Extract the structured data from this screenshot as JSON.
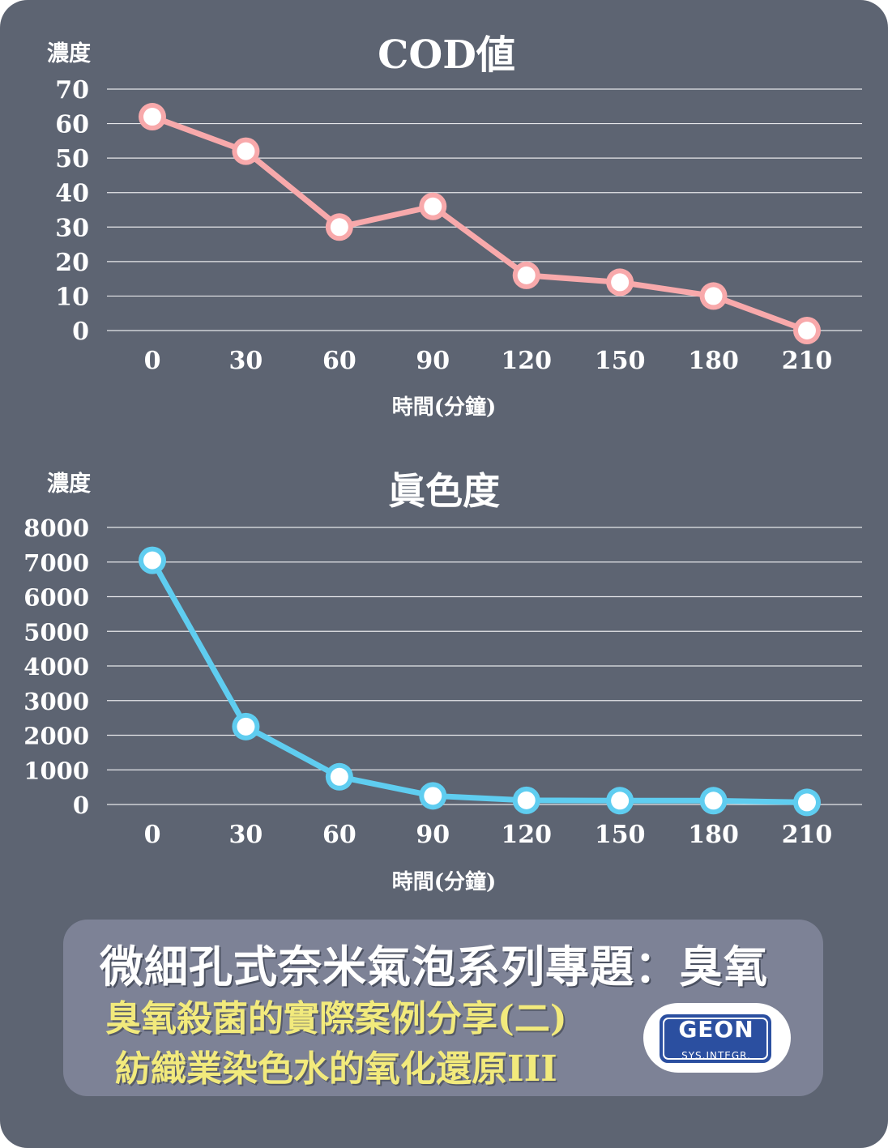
{
  "chart_data": [
    {
      "type": "line",
      "title": "COD値",
      "ylabel": "濃度",
      "xlabel": "時間(分鐘)",
      "categories": [
        "0",
        "30",
        "60",
        "90",
        "120",
        "150",
        "180",
        "210"
      ],
      "series": [
        {
          "values": [
            62,
            52,
            30,
            36,
            16,
            14,
            10,
            0
          ]
        }
      ],
      "y_ticks": [
        "70",
        "60",
        "50",
        "40",
        "30",
        "20",
        "10",
        "0"
      ],
      "ylim": [
        0,
        70
      ],
      "grid": true,
      "line_color": "#f8a9ab"
    },
    {
      "type": "line",
      "title": "眞色度",
      "ylabel": "濃度",
      "xlabel": "時間(分鐘)",
      "categories": [
        "0",
        "30",
        "60",
        "90",
        "120",
        "150",
        "180",
        "210"
      ],
      "series": [
        {
          "values": [
            7050,
            2250,
            800,
            250,
            120,
            110,
            110,
            60
          ]
        }
      ],
      "y_ticks": [
        "8000",
        "7000",
        "6000",
        "5000",
        "4000",
        "3000",
        "2000",
        "1000",
        "0"
      ],
      "ylim": [
        0,
        8000
      ],
      "grid": true,
      "line_color": "#5fcdf0"
    }
  ],
  "banner": {
    "title": "微細孔式奈米氣泡系列專題：臭氧",
    "subtitle_1": "臭氧殺菌的實際案例分享(二)",
    "subtitle_2": "紡織業染色水的氧化還原III"
  },
  "logo": {
    "wordmark": "GEON",
    "tagline": "SYS.INTEGR."
  }
}
